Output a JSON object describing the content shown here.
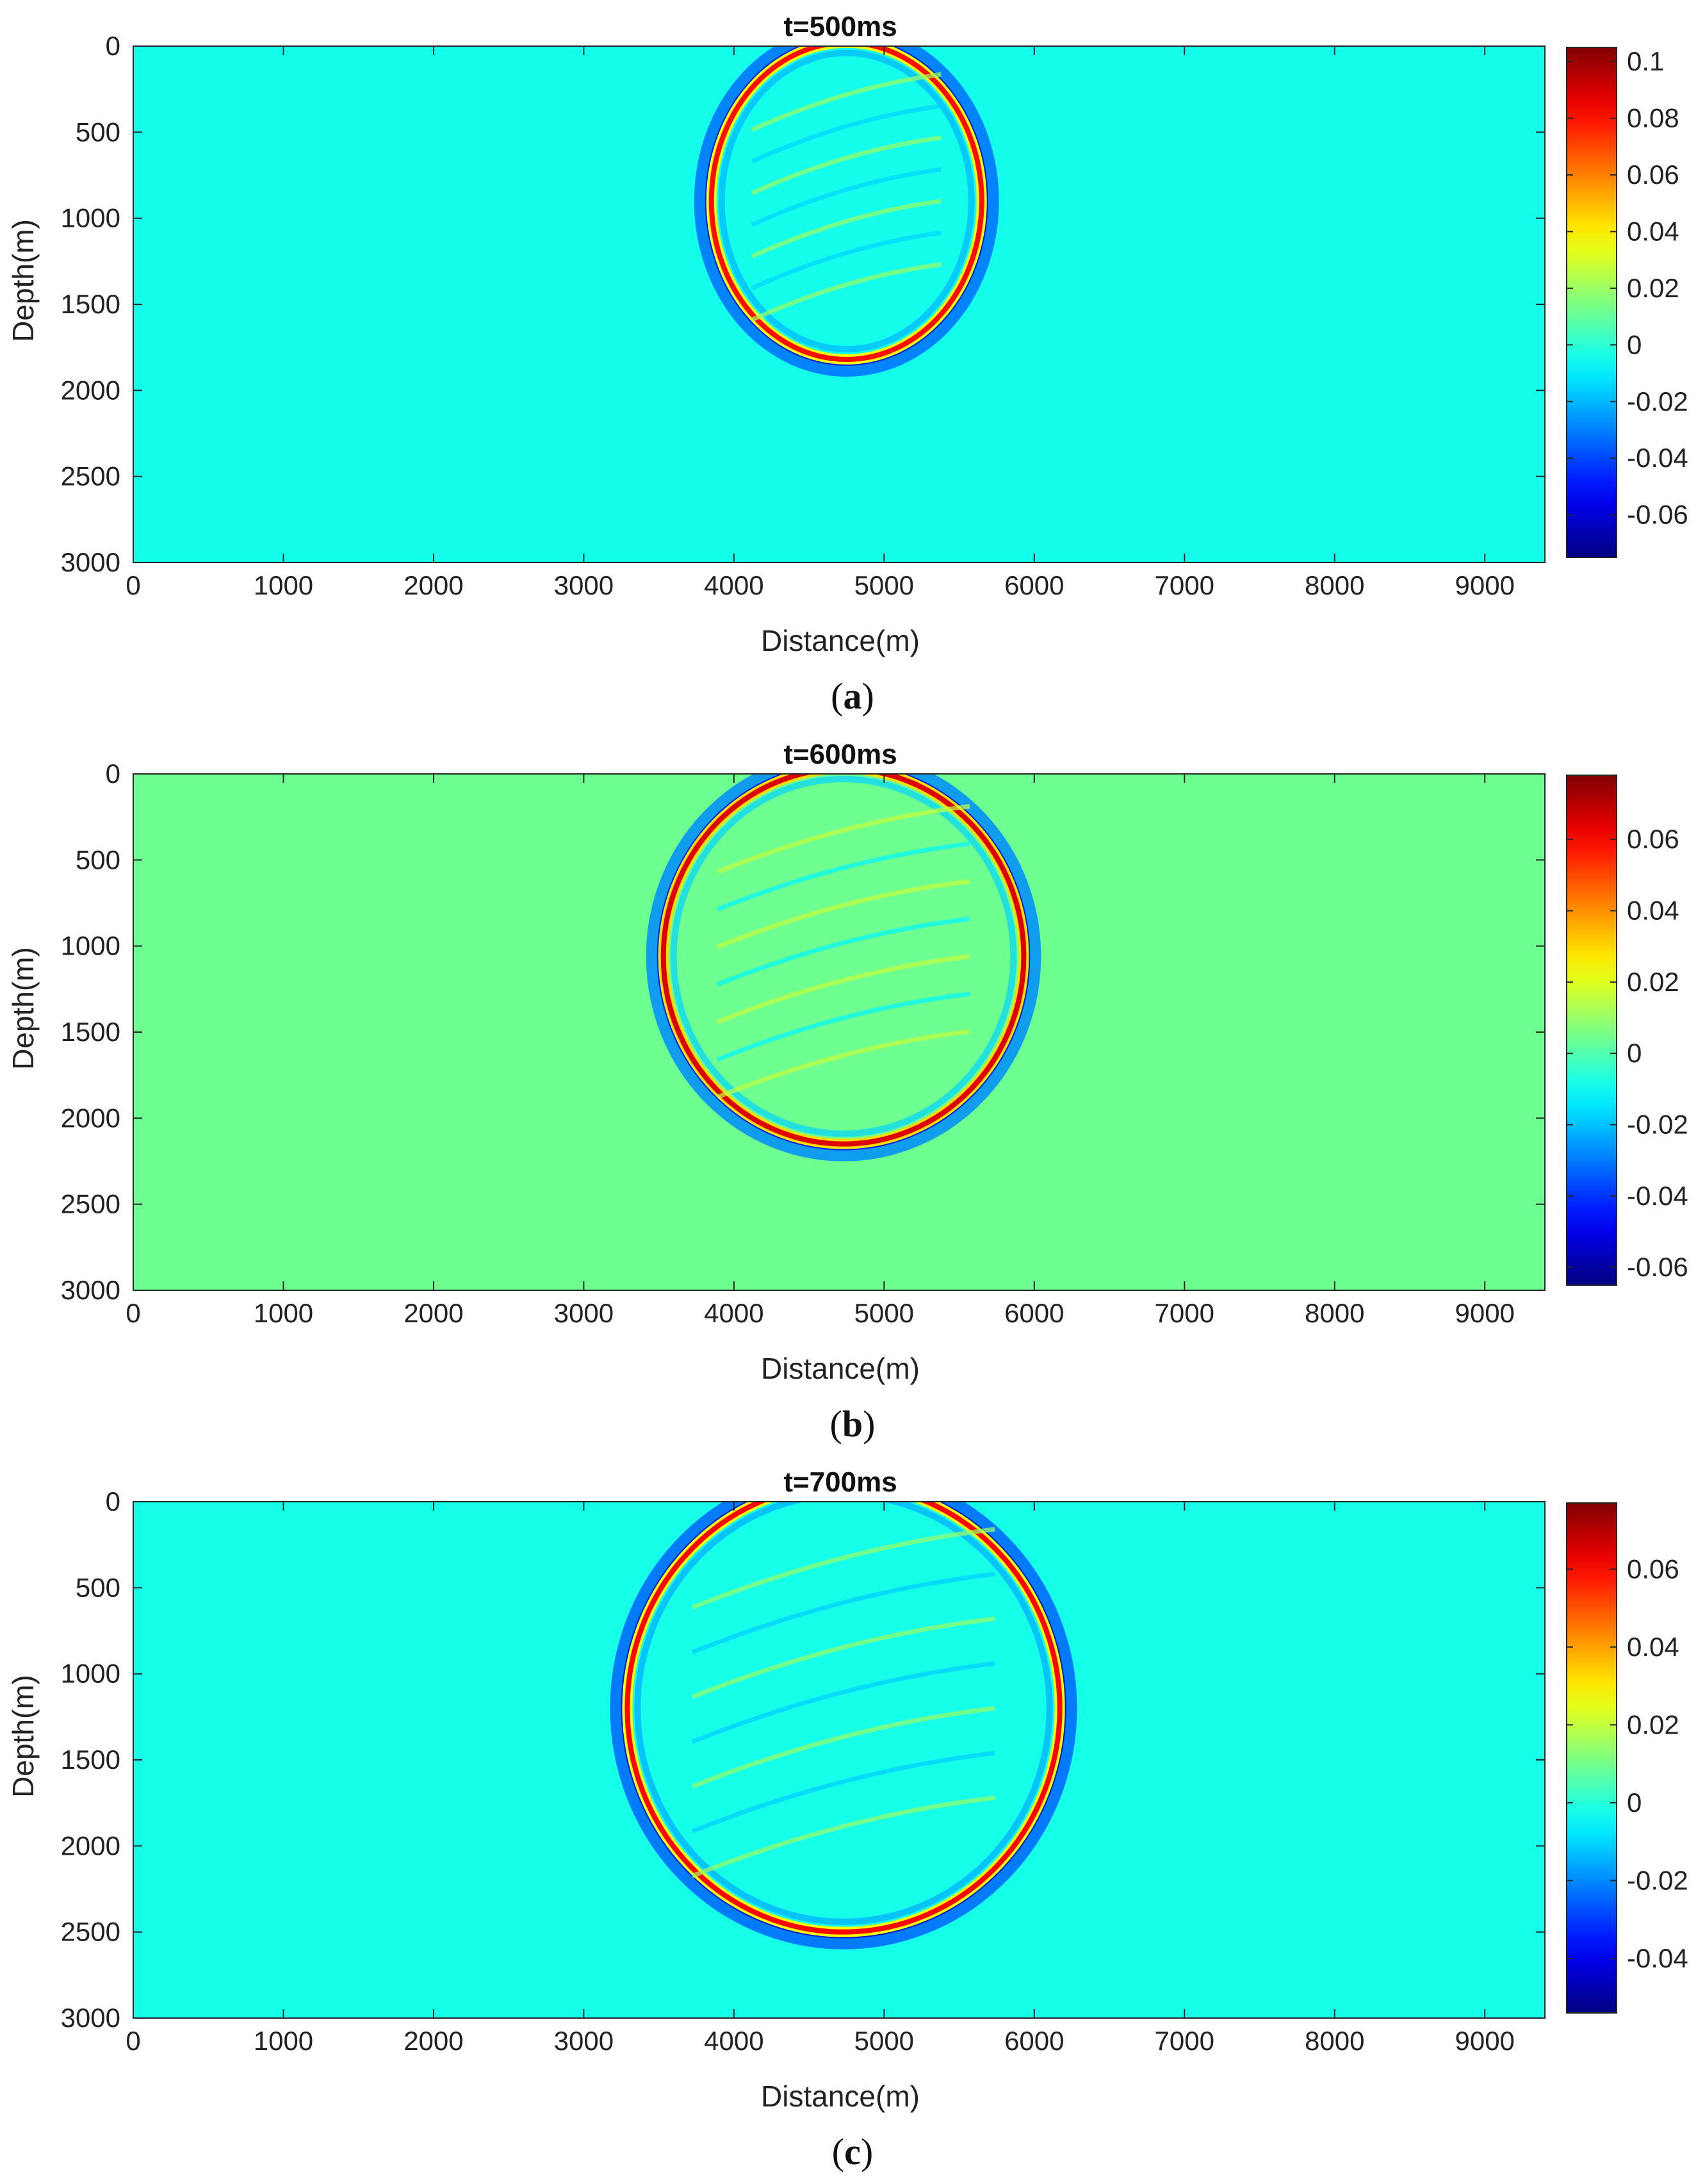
{
  "figure": {
    "panels": [
      {
        "caption_letter": "a",
        "caption_open": "(",
        "caption_close": ")"
      },
      {
        "caption_letter": "b",
        "caption_open": "(",
        "caption_close": ")"
      },
      {
        "caption_letter": "c",
        "caption_open": "(",
        "caption_close": ")"
      }
    ]
  },
  "chart_data": [
    {
      "type": "heatmap",
      "title": "t=500ms",
      "xlabel": "Distance(m)",
      "ylabel": "Depth(m)",
      "xlim": [
        0,
        9400
      ],
      "ylim": [
        0,
        3000
      ],
      "y_reversed": true,
      "xticks": [
        0,
        1000,
        2000,
        3000,
        4000,
        5000,
        6000,
        7000,
        8000,
        9000
      ],
      "yticks": [
        0,
        500,
        1000,
        1500,
        2000,
        2500,
        3000
      ],
      "colorbar": {
        "colormap": "jet",
        "range": [
          -0.075,
          0.105
        ],
        "ticks": [
          -0.06,
          -0.04,
          -0.02,
          0,
          0.02,
          0.04,
          0.06,
          0.08,
          0.1
        ],
        "tick_labels": [
          "-0.06",
          "-0.04",
          "-0.02",
          "0",
          "0.02",
          "0.04",
          "0.06",
          "0.08",
          "0.1"
        ]
      },
      "background_value": -0.004,
      "wavefront": {
        "center_x": 4750,
        "center_depth": 900,
        "radius_x": 900,
        "radius_depth": 920,
        "front_amplitude": 0.08,
        "trough_amplitude": -0.06
      }
    },
    {
      "type": "heatmap",
      "title": "t=600ms",
      "xlabel": "Distance(m)",
      "ylabel": "Depth(m)",
      "xlim": [
        0,
        9400
      ],
      "ylim": [
        0,
        3000
      ],
      "y_reversed": true,
      "xticks": [
        0,
        1000,
        2000,
        3000,
        4000,
        5000,
        6000,
        7000,
        8000,
        9000
      ],
      "yticks": [
        0,
        500,
        1000,
        1500,
        2000,
        2500,
        3000
      ],
      "colorbar": {
        "colormap": "jet",
        "range": [
          -0.065,
          0.078
        ],
        "ticks": [
          -0.06,
          -0.04,
          -0.02,
          0,
          0.02,
          0.04,
          0.06
        ],
        "tick_labels": [
          "-0.06",
          "-0.04",
          "-0.02",
          "0",
          "0.02",
          "0.04",
          "0.06"
        ]
      },
      "background_value": 0.004,
      "wavefront": {
        "center_x": 4730,
        "center_depth": 1060,
        "radius_x": 1200,
        "radius_depth": 1090,
        "front_amplitude": 0.065,
        "trough_amplitude": -0.05
      }
    },
    {
      "type": "heatmap",
      "title": "t=700ms",
      "xlabel": "Distance(m)",
      "ylabel": "Depth(m)",
      "xlim": [
        0,
        9400
      ],
      "ylim": [
        0,
        3000
      ],
      "y_reversed": true,
      "xticks": [
        0,
        1000,
        2000,
        3000,
        4000,
        5000,
        6000,
        7000,
        8000,
        9000
      ],
      "yticks": [
        0,
        500,
        1000,
        1500,
        2000,
        2500,
        3000
      ],
      "colorbar": {
        "colormap": "jet",
        "range": [
          -0.054,
          0.077
        ],
        "ticks": [
          -0.04,
          -0.02,
          0,
          0.02,
          0.04,
          0.06
        ],
        "tick_labels": [
          "-0.04",
          "-0.02",
          "0",
          "0.02",
          "0.04",
          "0.06"
        ]
      },
      "background_value": -0.002,
      "wavefront": {
        "center_x": 4730,
        "center_depth": 1200,
        "radius_x": 1440,
        "radius_depth": 1300,
        "front_amplitude": 0.06,
        "trough_amplitude": -0.045
      }
    }
  ]
}
